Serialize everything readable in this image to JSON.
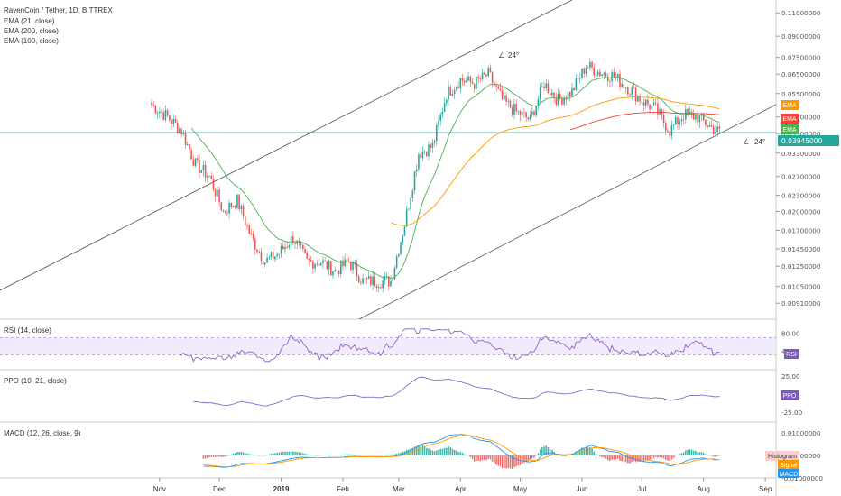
{
  "header": {
    "title": "RavenCoin / Tether, 1D, BITTREX",
    "indicators": [
      "EMA (21, close)",
      "EMA (200, close)",
      "EMA (100, close)"
    ]
  },
  "colors": {
    "up": "#26a69a",
    "down": "#ef5350",
    "ema21": "#4caf50",
    "ema100": "#ff9800",
    "ema200": "#f44336",
    "rsi": "#7e57c2",
    "ppo": "#7e57c2",
    "macd": "#2196f3",
    "signal": "#ff9800",
    "price_badge": "#26a69a",
    "channel": "#555555"
  },
  "main": {
    "price_axis_ticks": [
      "0.11000000",
      "0.09000000",
      "0.07500000",
      "0.06500000",
      "0.05500000",
      "0.04500000",
      "0.03900000",
      "0.03300000",
      "0.02700000",
      "0.02300000",
      "0.02000000",
      "0.01700000",
      "0.01450000",
      "0.01250000",
      "0.01050000",
      "0.00910000"
    ],
    "last_price": "0.03945000",
    "ema_labels": [
      "EMA",
      "EMA",
      "EMA"
    ],
    "angle_label_top": "24°",
    "angle_label_right": "24°"
  },
  "rsi": {
    "label": "RSI (14, close)",
    "ticks": [
      "80.00",
      "40.00"
    ],
    "badge": "RSI"
  },
  "ppo": {
    "label": "PPO (10, 21, close)",
    "ticks": [
      "25.00",
      "0.00",
      "-25.00"
    ],
    "badge": "PPO"
  },
  "macd": {
    "label": "MACD (12, 26, close, 9)",
    "ticks": [
      "0.01000000",
      "0.00000000",
      "-0.01000000"
    ],
    "badges": [
      "Histogram",
      "Signal",
      "MACD"
    ]
  },
  "time_axis": [
    "Nov",
    "Dec",
    "2019",
    "Feb",
    "Mar",
    "Apr",
    "May",
    "Jun",
    "Jul",
    "Aug",
    "Sep"
  ],
  "chart_data": {
    "type": "candlestick",
    "title": "RavenCoin / Tether, 1D, BITTREX",
    "x_range": [
      "2018-10-28",
      "2019-08-12"
    ],
    "y_scale": "log",
    "ylim": [
      0.0085,
      0.12
    ],
    "price_points": [
      [
        "2018-10-28",
        0.05
      ],
      [
        "2018-11-05",
        0.045
      ],
      [
        "2018-11-12",
        0.04
      ],
      [
        "2018-11-19",
        0.03
      ],
      [
        "2018-11-26",
        0.027
      ],
      [
        "2018-12-03",
        0.02
      ],
      [
        "2018-12-10",
        0.022
      ],
      [
        "2018-12-17",
        0.016
      ],
      [
        "2018-12-24",
        0.013
      ],
      [
        "2018-12-31",
        0.014
      ],
      [
        "2019-01-07",
        0.016
      ],
      [
        "2019-01-14",
        0.013
      ],
      [
        "2019-01-21",
        0.013
      ],
      [
        "2019-01-28",
        0.012
      ],
      [
        "2019-02-04",
        0.013
      ],
      [
        "2019-02-11",
        0.011
      ],
      [
        "2019-02-18",
        0.011
      ],
      [
        "2019-02-25",
        0.011
      ],
      [
        "2019-03-04",
        0.018
      ],
      [
        "2019-03-11",
        0.033
      ],
      [
        "2019-03-18",
        0.035
      ],
      [
        "2019-03-25",
        0.055
      ],
      [
        "2019-04-01",
        0.062
      ],
      [
        "2019-04-08",
        0.06
      ],
      [
        "2019-04-15",
        0.065
      ],
      [
        "2019-04-22",
        0.052
      ],
      [
        "2019-04-29",
        0.047
      ],
      [
        "2019-05-06",
        0.044
      ],
      [
        "2019-05-13",
        0.06
      ],
      [
        "2019-05-20",
        0.052
      ],
      [
        "2019-05-27",
        0.056
      ],
      [
        "2019-06-03",
        0.07
      ],
      [
        "2019-06-10",
        0.066
      ],
      [
        "2019-06-17",
        0.064
      ],
      [
        "2019-06-24",
        0.058
      ],
      [
        "2019-07-01",
        0.052
      ],
      [
        "2019-07-08",
        0.048
      ],
      [
        "2019-07-15",
        0.04
      ],
      [
        "2019-07-22",
        0.046
      ],
      [
        "2019-07-29",
        0.045
      ],
      [
        "2019-08-05",
        0.041
      ],
      [
        "2019-08-09",
        0.0395
      ]
    ],
    "series": [
      {
        "name": "EMA (21, close)",
        "color": "#4caf50"
      },
      {
        "name": "EMA (100, close)",
        "color": "#ff9800"
      },
      {
        "name": "EMA (200, close)",
        "color": "#f44336"
      }
    ]
  }
}
